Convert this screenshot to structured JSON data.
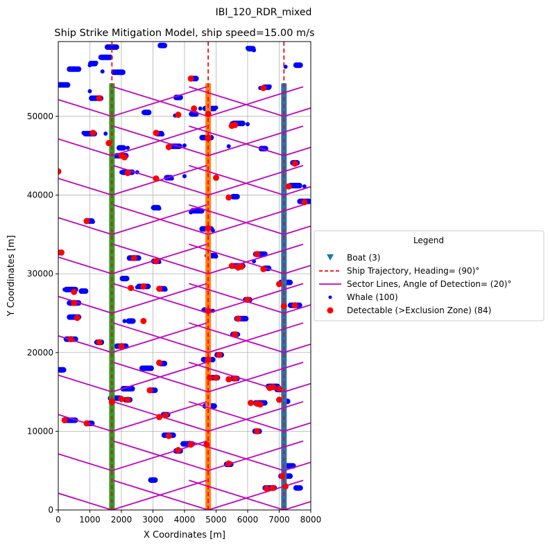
{
  "figure": {
    "suptitle": "IBI_120_RDR_mixed",
    "title": "Ship Strike Mitigation Model, ship speed=15.00 m/s"
  },
  "legend": {
    "title": "Legend",
    "entries": [
      {
        "label": "Boat (3)",
        "marker": "triangle-down",
        "color": "#1f77b4"
      },
      {
        "label": "Ship Trajectory, Heading= (90)°",
        "marker": "dashed-line",
        "color": "#ff0000"
      },
      {
        "label": "Sector Lines, Angle of Detection= (20)°",
        "marker": "solid-line",
        "color": "#bf00bf"
      },
      {
        "label": "Whale (100)",
        "marker": "small-dot",
        "color": "#0000ff"
      },
      {
        "label": "Detectable (>Exclusion Zone) (84)",
        "marker": "dot",
        "color": "#ff0000"
      }
    ]
  },
  "chart_data": {
    "type": "scatter",
    "xlabel": "X Coordinates [m]",
    "ylabel": "Y Coordinates [m]",
    "xlim": [
      0,
      8000
    ],
    "ylim": [
      0,
      59500
    ],
    "xticks": [
      0,
      1000,
      2000,
      3000,
      4000,
      5000,
      6000,
      7000,
      8000
    ],
    "yticks": [
      0,
      10000,
      20000,
      30000,
      40000,
      50000
    ],
    "grid": true,
    "legend_position": "outside-right",
    "colors": {
      "boat": "#1f77b4",
      "trajectory": "#ff0000",
      "sector": "#bf00bf",
      "whale": "#0000ff",
      "detectable": "#ff0000",
      "grid": "#b0b0b0"
    },
    "boats": [
      {
        "x": 1700,
        "y_start": 0,
        "y_end": 54200,
        "track_color": "#2ca02c"
      },
      {
        "x": 4750,
        "y_start": 0,
        "y_end": 54200,
        "track_color": "#ff7f0e"
      },
      {
        "x": 7150,
        "y_start": 0,
        "y_end": 54200,
        "track_color": "#1f77b4"
      }
    ],
    "trajectories": [
      {
        "x": 1700,
        "y_start": 0,
        "y_end": 59500
      },
      {
        "x": 4750,
        "y_start": 0,
        "y_end": 59500
      },
      {
        "x": 7150,
        "y_start": 0,
        "y_end": 59500
      }
    ],
    "sector_lines": {
      "angle_deg": 20,
      "arm_length": 4000,
      "apex_y": [
        0,
        5000,
        10000,
        15000,
        20000,
        25000,
        30000,
        35000,
        40000,
        45000,
        50000
      ]
    },
    "whales": [
      [
        3300,
        59000
      ],
      [
        1700,
        58800
      ],
      [
        6000,
        58700
      ],
      [
        6200,
        58400
      ],
      [
        1500,
        57500
      ],
      [
        1200,
        56800
      ],
      [
        1000,
        56500
      ],
      [
        500,
        56000
      ],
      [
        7200,
        56300
      ],
      [
        7600,
        56500
      ],
      [
        1400,
        55700
      ],
      [
        2000,
        55500
      ],
      [
        4200,
        54800
      ],
      [
        0,
        54000
      ],
      [
        300,
        53900
      ],
      [
        6400,
        53600
      ],
      [
        6700,
        53800
      ],
      [
        1000,
        53200
      ],
      [
        1300,
        52300
      ],
      [
        3800,
        52400
      ],
      [
        4500,
        51000
      ],
      [
        5000,
        51100
      ],
      [
        4200,
        50300
      ],
      [
        5500,
        49100
      ],
      [
        6000,
        49000
      ],
      [
        2700,
        50500
      ],
      [
        3700,
        50100
      ],
      [
        800,
        47900
      ],
      [
        1500,
        47800
      ],
      [
        3100,
        47900
      ],
      [
        3300,
        47700
      ],
      [
        4700,
        47300
      ],
      [
        1700,
        46700
      ],
      [
        2200,
        46000
      ],
      [
        3500,
        46200
      ],
      [
        4000,
        46300
      ],
      [
        5400,
        46200
      ],
      [
        6500,
        45900
      ],
      [
        2000,
        45100
      ],
      [
        1800,
        44900
      ],
      [
        7500,
        44100
      ],
      [
        2000,
        42900
      ],
      [
        2500,
        42900
      ],
      [
        3100,
        42200
      ],
      [
        3600,
        42100
      ],
      [
        4000,
        42400
      ],
      [
        5000,
        42100
      ],
      [
        7200,
        41200
      ],
      [
        7500,
        41200
      ],
      [
        7800,
        41100
      ],
      [
        5600,
        39800
      ],
      [
        7800,
        39100
      ],
      [
        3000,
        38400
      ],
      [
        3200,
        38300
      ],
      [
        4200,
        37800
      ],
      [
        900,
        36700
      ],
      [
        1100,
        36600
      ],
      [
        4600,
        35800
      ],
      [
        4900,
        35500
      ],
      [
        0,
        32700
      ],
      [
        2400,
        32000
      ],
      [
        4700,
        32300
      ],
      [
        5000,
        32200
      ],
      [
        6400,
        32500
      ],
      [
        6200,
        31600
      ],
      [
        3000,
        31600
      ],
      [
        3200,
        31500
      ],
      [
        5700,
        30900
      ],
      [
        6500,
        30700
      ],
      [
        7100,
        28900
      ],
      [
        7300,
        29000
      ],
      [
        2100,
        29400
      ],
      [
        2500,
        28300
      ],
      [
        2800,
        28400
      ],
      [
        3200,
        28100
      ],
      [
        3400,
        28000
      ],
      [
        200,
        28000
      ],
      [
        800,
        27800
      ],
      [
        600,
        26300
      ],
      [
        6000,
        26700
      ],
      [
        7600,
        25900
      ],
      [
        4600,
        25400
      ],
      [
        4900,
        25300
      ],
      [
        500,
        24600
      ],
      [
        600,
        24400
      ],
      [
        2100,
        24000
      ],
      [
        2700,
        24000
      ],
      [
        5700,
        24300
      ],
      [
        5700,
        22300
      ],
      [
        400,
        21700
      ],
      [
        1200,
        21300
      ],
      [
        2000,
        20800
      ],
      [
        3200,
        18600
      ],
      [
        2900,
        18000
      ],
      [
        100,
        17700
      ],
      [
        1700,
        14200
      ],
      [
        2200,
        15400
      ],
      [
        3000,
        15200
      ],
      [
        4800,
        13200
      ],
      [
        6400,
        13600
      ]
    ],
    "detectable": [
      [
        1300,
        52300
      ],
      [
        4200,
        54800
      ],
      [
        6500,
        53600
      ],
      [
        4300,
        51000
      ],
      [
        3800,
        50200
      ],
      [
        5600,
        48900
      ],
      [
        5500,
        48800
      ],
      [
        1100,
        47900
      ],
      [
        3100,
        47900
      ],
      [
        4750,
        47300
      ],
      [
        1600,
        46600
      ],
      [
        3500,
        46100
      ],
      [
        2000,
        45000
      ],
      [
        7500,
        44000
      ],
      [
        0,
        43000
      ],
      [
        2200,
        42800
      ],
      [
        3100,
        42100
      ],
      [
        5000,
        42200
      ],
      [
        7300,
        41100
      ],
      [
        5400,
        39700
      ],
      [
        7800,
        39100
      ],
      [
        900,
        36700
      ],
      [
        4750,
        35800
      ],
      [
        100,
        32700
      ],
      [
        2400,
        32000
      ],
      [
        3100,
        31600
      ],
      [
        5500,
        31000
      ],
      [
        5700,
        30800
      ],
      [
        6500,
        30600
      ],
      [
        7000,
        28700
      ],
      [
        2300,
        28200
      ],
      [
        2700,
        28400
      ],
      [
        3200,
        28100
      ],
      [
        500,
        27700
      ],
      [
        500,
        26300
      ],
      [
        6000,
        26700
      ],
      [
        7500,
        26000
      ],
      [
        4750,
        25300
      ],
      [
        600,
        24400
      ],
      [
        2700,
        24000
      ],
      [
        5700,
        24300
      ],
      [
        5600,
        22300
      ],
      [
        400,
        21700
      ],
      [
        1300,
        21300
      ],
      [
        2000,
        20800
      ],
      [
        3200,
        18700
      ],
      [
        4750,
        19100
      ],
      [
        5100,
        19700
      ],
      [
        2900,
        15200
      ],
      [
        6800,
        15600
      ],
      [
        7000,
        15400
      ],
      [
        4800,
        16800
      ],
      [
        5400,
        16600
      ],
      [
        5600,
        16700
      ],
      [
        1700,
        13800
      ],
      [
        2000,
        14100
      ],
      [
        2200,
        14000
      ],
      [
        6300,
        13500
      ],
      [
        6400,
        13400
      ],
      [
        7000,
        14000
      ],
      [
        3400,
        12000
      ],
      [
        200,
        11400
      ],
      [
        900,
        11000
      ],
      [
        3500,
        9400
      ],
      [
        6300,
        10000
      ],
      [
        3800,
        7600
      ],
      [
        4200,
        8300
      ],
      [
        5400,
        5900
      ],
      [
        7100,
        4300
      ],
      [
        6800,
        2800
      ],
      [
        4750,
        50300
      ],
      [
        4750,
        47200
      ],
      [
        1700,
        13700
      ],
      [
        7150,
        25900
      ],
      [
        5800,
        30900
      ],
      [
        2100,
        44800
      ],
      [
        6300,
        32500
      ],
      [
        5000,
        16800
      ],
      [
        6100,
        13600
      ],
      [
        3200,
        11800
      ],
      [
        4700,
        8300
      ],
      [
        6600,
        2700
      ],
      [
        7200,
        3000
      ],
      [
        6700,
        15500
      ]
    ],
    "whale_bands": [
      [
        3300,
        59000
      ],
      [
        1700,
        58800
      ],
      [
        6100,
        58600
      ],
      [
        1500,
        57500
      ],
      [
        1100,
        56700
      ],
      [
        500,
        56000
      ],
      [
        7600,
        56500
      ],
      [
        1900,
        55600
      ],
      [
        4300,
        54800
      ],
      [
        150,
        54000
      ],
      [
        6600,
        53700
      ],
      [
        1200,
        52300
      ],
      [
        3800,
        52400
      ],
      [
        4800,
        51000
      ],
      [
        4300,
        50300
      ],
      [
        5700,
        49100
      ],
      [
        2800,
        50500
      ],
      [
        1000,
        47800
      ],
      [
        3200,
        47800
      ],
      [
        4700,
        47300
      ],
      [
        2000,
        46000
      ],
      [
        3700,
        46200
      ],
      [
        6500,
        45900
      ],
      [
        2000,
        45000
      ],
      [
        7500,
        44100
      ],
      [
        2200,
        42900
      ],
      [
        3500,
        42200
      ],
      [
        7500,
        41200
      ],
      [
        5600,
        39800
      ],
      [
        7800,
        39200
      ],
      [
        3100,
        38400
      ],
      [
        4400,
        38000
      ],
      [
        1000,
        36700
      ],
      [
        4700,
        35700
      ],
      [
        0,
        32700
      ],
      [
        2400,
        32000
      ],
      [
        4900,
        32300
      ],
      [
        6400,
        32500
      ],
      [
        3100,
        31600
      ],
      [
        5700,
        31000
      ],
      [
        6600,
        30700
      ],
      [
        7200,
        28900
      ],
      [
        2100,
        29400
      ],
      [
        2700,
        28400
      ],
      [
        3300,
        28100
      ],
      [
        400,
        28000
      ],
      [
        800,
        27800
      ],
      [
        500,
        26300
      ],
      [
        6000,
        26700
      ],
      [
        7500,
        26000
      ],
      [
        4700,
        25400
      ],
      [
        500,
        24500
      ],
      [
        2300,
        24000
      ],
      [
        5800,
        24300
      ],
      [
        5600,
        22300
      ],
      [
        400,
        21700
      ],
      [
        1300,
        21300
      ],
      [
        2000,
        20800
      ],
      [
        3300,
        18600
      ],
      [
        2800,
        18000
      ],
      [
        100,
        17800
      ],
      [
        4750,
        19100
      ],
      [
        5100,
        19700
      ],
      [
        2200,
        15400
      ],
      [
        3000,
        15200
      ],
      [
        4900,
        16800
      ],
      [
        5600,
        16700
      ],
      [
        6800,
        15700
      ],
      [
        7000,
        15300
      ],
      [
        1800,
        14200
      ],
      [
        2200,
        14000
      ],
      [
        6400,
        13600
      ],
      [
        7200,
        13800
      ],
      [
        4800,
        13200
      ],
      [
        3400,
        12100
      ],
      [
        400,
        11400
      ],
      [
        1000,
        11000
      ],
      [
        3500,
        9500
      ],
      [
        6300,
        10000
      ],
      [
        4100,
        8400
      ],
      [
        3800,
        7500
      ],
      [
        7300,
        5600
      ],
      [
        5400,
        5800
      ],
      [
        7200,
        4300
      ],
      [
        3000,
        3800
      ],
      [
        6700,
        2800
      ],
      [
        7600,
        2800
      ]
    ]
  }
}
